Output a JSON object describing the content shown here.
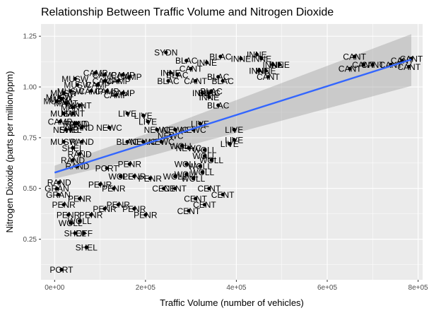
{
  "chart_data": {
    "type": "scatter",
    "title": "Relationship Between Traffic Volume and Nitrogen Dioxide",
    "xlabel": "Traffic Volume (number of vehicles)",
    "ylabel": "Nitrogen Dioxide  (parts per million/ppm)",
    "xlim": [
      -30000,
      810000
    ],
    "ylim": [
      0.05,
      1.31
    ],
    "x_ticks": [
      0,
      200000,
      400000,
      600000,
      800000
    ],
    "x_tick_labels": [
      "0e+00",
      "2e+05",
      "4e+05",
      "6e+05",
      "8e+05"
    ],
    "y_ticks": [
      0.25,
      0.5,
      0.75,
      1.0,
      1.25
    ],
    "y_tick_labels": [
      "0.25",
      "0.50",
      "0.75",
      "1.00",
      "1.25"
    ],
    "grid": true,
    "legend": "none",
    "colors": {
      "panel_bg": "#ebebeb",
      "grid_major": "#ffffff",
      "points": "#000000",
      "trend_line": "#3366ff",
      "confidence_band": "#999999"
    },
    "trend": {
      "method": "lm",
      "start": [
        0,
        0.578
      ],
      "end": [
        785000,
        1.135
      ],
      "ci_lower": [
        0.548,
        0.66,
        1.005
      ],
      "ci_upper": [
        0.612,
        0.775,
        1.26
      ],
      "ci_x": [
        0,
        210000,
        785000
      ]
    },
    "points": [
      {
        "label": "PORT",
        "x": 15000,
        "y": 0.1
      },
      {
        "label": "SHEL",
        "x": 70000,
        "y": 0.21
      },
      {
        "label": "SHEL",
        "x": 45000,
        "y": 0.28
      },
      {
        "label": "OFF",
        "x": 65000,
        "y": 0.28
      },
      {
        "label": "WOLL",
        "x": 35000,
        "y": 0.33
      },
      {
        "label": "WOLL",
        "x": 55000,
        "y": 0.34
      },
      {
        "label": "PENR",
        "x": 30000,
        "y": 0.37
      },
      {
        "label": "PENR",
        "x": 80000,
        "y": 0.37
      },
      {
        "label": "PENR",
        "x": 110000,
        "y": 0.4
      },
      {
        "label": "PENR",
        "x": 140000,
        "y": 0.42
      },
      {
        "label": "PENR",
        "x": 175000,
        "y": 0.4
      },
      {
        "label": "PENR",
        "x": 200000,
        "y": 0.37
      },
      {
        "label": "PENR",
        "x": 20000,
        "y": 0.42
      },
      {
        "label": "PENR",
        "x": 55000,
        "y": 0.45
      },
      {
        "label": "GRAN",
        "x": 8000,
        "y": 0.47
      },
      {
        "label": "GRAN",
        "x": 5000,
        "y": 0.5
      },
      {
        "label": "RAND",
        "x": 10000,
        "y": 0.53
      },
      {
        "label": "PENR",
        "x": 100000,
        "y": 0.52
      },
      {
        "label": "PENR",
        "x": 130000,
        "y": 0.5
      },
      {
        "label": "WOLL",
        "x": 145000,
        "y": 0.56
      },
      {
        "label": "PENR",
        "x": 175000,
        "y": 0.56
      },
      {
        "label": "PENR",
        "x": 210000,
        "y": 0.55
      },
      {
        "label": "PORT",
        "x": 115000,
        "y": 0.6
      },
      {
        "label": "PENR",
        "x": 165000,
        "y": 0.62
      },
      {
        "label": "RAND",
        "x": 50000,
        "y": 0.61
      },
      {
        "label": "RAND",
        "x": 40000,
        "y": 0.64
      },
      {
        "label": "RAND",
        "x": 55000,
        "y": 0.67
      },
      {
        "label": "SHEL",
        "x": 40000,
        "y": 0.7
      },
      {
        "label": "MUSW",
        "x": 20000,
        "y": 0.73
      },
      {
        "label": "RAND",
        "x": 60000,
        "y": 0.73
      },
      {
        "label": "BLAC",
        "x": 160000,
        "y": 0.73
      },
      {
        "label": "NEWC",
        "x": 195000,
        "y": 0.73
      },
      {
        "label": "NEWC",
        "x": 235000,
        "y": 0.73
      },
      {
        "label": "NEWC",
        "x": 120000,
        "y": 0.8
      },
      {
        "label": "NEWC",
        "x": 225000,
        "y": 0.79
      },
      {
        "label": "NEWC",
        "x": 265000,
        "y": 0.79
      },
      {
        "label": "NEWC",
        "x": 305000,
        "y": 0.79
      },
      {
        "label": "NEWC",
        "x": 255000,
        "y": 0.76
      },
      {
        "label": "LIVE",
        "x": 195000,
        "y": 0.86
      },
      {
        "label": "LIVE",
        "x": 205000,
        "y": 0.83
      },
      {
        "label": "LIVE",
        "x": 160000,
        "y": 0.87
      },
      {
        "label": "LIVE",
        "x": 320000,
        "y": 0.82
      },
      {
        "label": "LIVE",
        "x": 395000,
        "y": 0.79
      },
      {
        "label": "LIVE",
        "x": 395000,
        "y": 0.74
      },
      {
        "label": "LIVE",
        "x": 385000,
        "y": 0.72
      },
      {
        "label": "WOLL",
        "x": 280000,
        "y": 0.71
      },
      {
        "label": "WOLL",
        "x": 330000,
        "y": 0.69
      },
      {
        "label": "NEWC",
        "x": 295000,
        "y": 0.7
      },
      {
        "label": "WOLL",
        "x": 330000,
        "y": 0.66
      },
      {
        "label": "WOLL",
        "x": 345000,
        "y": 0.64
      },
      {
        "label": "WOLL",
        "x": 290000,
        "y": 0.62
      },
      {
        "label": "WOLL",
        "x": 320000,
        "y": 0.61
      },
      {
        "label": "WOLL",
        "x": 265000,
        "y": 0.56
      },
      {
        "label": "WOLL",
        "x": 290000,
        "y": 0.57
      },
      {
        "label": "WOLL",
        "x": 305000,
        "y": 0.55
      },
      {
        "label": "WOLL",
        "x": 325000,
        "y": 0.58
      },
      {
        "label": "CENT",
        "x": 240000,
        "y": 0.5
      },
      {
        "label": "CENT",
        "x": 265000,
        "y": 0.5
      },
      {
        "label": "CENT",
        "x": 340000,
        "y": 0.5
      },
      {
        "label": "CENT",
        "x": 370000,
        "y": 0.47
      },
      {
        "label": "CENT",
        "x": 310000,
        "y": 0.45
      },
      {
        "label": "CENT",
        "x": 330000,
        "y": 0.42
      },
      {
        "label": "CENT",
        "x": 295000,
        "y": 0.39
      },
      {
        "label": "SYDN",
        "x": 245000,
        "y": 1.17
      },
      {
        "label": "BLAC",
        "x": 290000,
        "y": 1.13
      },
      {
        "label": "INNE",
        "x": 335000,
        "y": 1.12
      },
      {
        "label": "BLAC",
        "x": 365000,
        "y": 1.15
      },
      {
        "label": "INNE",
        "x": 410000,
        "y": 1.14
      },
      {
        "label": "INNE",
        "x": 445000,
        "y": 1.16
      },
      {
        "label": "INNE",
        "x": 455000,
        "y": 1.14
      },
      {
        "label": "INNE",
        "x": 480000,
        "y": 1.11
      },
      {
        "label": "INNE",
        "x": 495000,
        "y": 1.11
      },
      {
        "label": "INNE",
        "x": 450000,
        "y": 1.08
      },
      {
        "label": "INNE",
        "x": 465000,
        "y": 1.08
      },
      {
        "label": "CANT",
        "x": 300000,
        "y": 1.09
      },
      {
        "label": "CANT",
        "x": 470000,
        "y": 1.05
      },
      {
        "label": "CANT",
        "x": 310000,
        "y": 1.03
      },
      {
        "label": "INNE",
        "x": 255000,
        "y": 1.07
      },
      {
        "label": "BLAC",
        "x": 270000,
        "y": 1.06
      },
      {
        "label": "BLAC",
        "x": 250000,
        "y": 1.03
      },
      {
        "label": "BLAC",
        "x": 360000,
        "y": 1.05
      },
      {
        "label": "BLAC",
        "x": 370000,
        "y": 1.03
      },
      {
        "label": "BLAC",
        "x": 345000,
        "y": 0.98
      },
      {
        "label": "BLAC",
        "x": 340000,
        "y": 0.97
      },
      {
        "label": "INNE",
        "x": 325000,
        "y": 0.97
      },
      {
        "label": "INNE",
        "x": 340000,
        "y": 0.95
      },
      {
        "label": "BLAC",
        "x": 360000,
        "y": 0.91
      },
      {
        "label": "CANT",
        "x": 660000,
        "y": 1.15
      },
      {
        "label": "CANT",
        "x": 680000,
        "y": 1.11
      },
      {
        "label": "CANT",
        "x": 700000,
        "y": 1.11
      },
      {
        "label": "CANT",
        "x": 740000,
        "y": 1.11
      },
      {
        "label": "CANT",
        "x": 765000,
        "y": 1.13
      },
      {
        "label": "CANT",
        "x": 785000,
        "y": 1.14
      },
      {
        "label": "CANT",
        "x": 780000,
        "y": 1.1
      },
      {
        "label": "CANT",
        "x": 650000,
        "y": 1.09
      },
      {
        "label": "CAMP",
        "x": 90000,
        "y": 1.07
      },
      {
        "label": "CAMP",
        "x": 110000,
        "y": 1.06
      },
      {
        "label": "CAMP",
        "x": 150000,
        "y": 1.06
      },
      {
        "label": "CAMP",
        "x": 165000,
        "y": 1.05
      },
      {
        "label": "CAMP",
        "x": 110000,
        "y": 1.03
      },
      {
        "label": "CAMP",
        "x": 140000,
        "y": 1.03
      },
      {
        "label": "CAMP",
        "x": 95000,
        "y": 1.01
      },
      {
        "label": "CAMP",
        "x": 115000,
        "y": 0.98
      },
      {
        "label": "CAMP",
        "x": 150000,
        "y": 0.97
      },
      {
        "label": "CAMP",
        "x": 135000,
        "y": 0.96
      },
      {
        "label": "CAMP",
        "x": 80000,
        "y": 0.98
      },
      {
        "label": "MUSW",
        "x": 45000,
        "y": 1.04
      },
      {
        "label": "MUSW",
        "x": 50000,
        "y": 1.01
      },
      {
        "label": "MUSW",
        "x": 35000,
        "y": 0.98
      },
      {
        "label": "MUSW",
        "x": 20000,
        "y": 0.97
      },
      {
        "label": "MUSW",
        "x": 10000,
        "y": 0.95
      },
      {
        "label": "MUSW",
        "x": 5000,
        "y": 0.93
      },
      {
        "label": "MANT",
        "x": 15000,
        "y": 0.94
      },
      {
        "label": "MANT",
        "x": 25000,
        "y": 0.92
      },
      {
        "label": "MANT",
        "x": 40000,
        "y": 0.9
      },
      {
        "label": "MANT",
        "x": 55000,
        "y": 0.91
      },
      {
        "label": "MUSW",
        "x": 20000,
        "y": 0.87
      },
      {
        "label": "MANT",
        "x": 40000,
        "y": 0.87
      },
      {
        "label": "RAND",
        "x": 45000,
        "y": 0.82
      },
      {
        "label": "RAND",
        "x": 50000,
        "y": 0.82
      },
      {
        "label": "SHEL",
        "x": 35000,
        "y": 0.79
      },
      {
        "label": "NEWC",
        "x": 25000,
        "y": 0.79
      },
      {
        "label": "RAND",
        "x": 60000,
        "y": 0.8
      },
      {
        "label": "CAMP",
        "x": 12000,
        "y": 0.83
      }
    ]
  }
}
